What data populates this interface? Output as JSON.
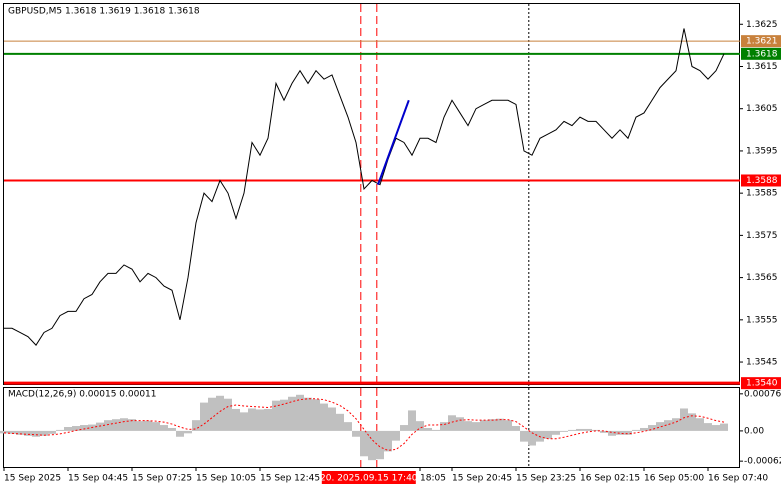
{
  "chart_data": [
    {
      "type": "line",
      "title": "GBPUSD,M5  1.3618 1.3619 1.3618 1.3618",
      "color": "#000000",
      "values": [
        1.3553,
        1.3553,
        1.3552,
        1.3551,
        1.3549,
        1.3552,
        1.3553,
        1.3556,
        1.3557,
        1.3557,
        1.356,
        1.3561,
        1.3564,
        1.3566,
        1.3566,
        1.3568,
        1.3567,
        1.3564,
        1.3566,
        1.3565,
        1.3563,
        1.3562,
        1.3555,
        1.3565,
        1.3578,
        1.3585,
        1.3583,
        1.3588,
        1.3585,
        1.3579,
        1.3585,
        1.3597,
        1.3594,
        1.3598,
        1.3611,
        1.3607,
        1.3611,
        1.3614,
        1.3611,
        1.3614,
        1.3612,
        1.3613,
        1.3608,
        1.3603,
        1.3597,
        1.3586,
        1.3588,
        1.3587,
        1.3593,
        1.3598,
        1.3597,
        1.3594,
        1.3598,
        1.3598,
        1.3597,
        1.3603,
        1.3607,
        1.3604,
        1.3601,
        1.3605,
        1.3606,
        1.3607,
        1.3607,
        1.3607,
        1.3606,
        1.3595,
        1.3594,
        1.3598,
        1.3599,
        1.36,
        1.3602,
        1.3601,
        1.3603,
        1.3602,
        1.3602,
        1.36,
        1.3598,
        1.36,
        1.3598,
        1.3603,
        1.3604,
        1.3607,
        1.361,
        1.3612,
        1.3614,
        1.3624,
        1.3615,
        1.3614,
        1.3612,
        1.3614,
        1.3618
      ],
      "xlim": [
        0,
        92
      ],
      "xticks": [
        {
          "value": 0,
          "label": "15 Sep 2025"
        },
        {
          "value": 8,
          "label": "15 Sep 04:45"
        },
        {
          "value": 16,
          "label": "15 Sep 07:25"
        },
        {
          "value": 24,
          "label": "15 Sep 10:05"
        },
        {
          "value": 32,
          "label": "15 Sep 12:45"
        },
        {
          "value": 52,
          "label": "18:05"
        },
        {
          "value": 56,
          "label": "15 Sep 20:45"
        },
        {
          "value": 64,
          "label": "15 Sep 23:25"
        },
        {
          "value": 72,
          "label": "16 Sep 02:15"
        },
        {
          "value": 80,
          "label": "16 Sep 05:00"
        },
        {
          "value": 88,
          "label": "16 Sep 07:40"
        }
      ],
      "highlight": {
        "value": 45.6,
        "label": "20. 2025.09.15 17:40",
        "color": "#ff0000"
      },
      "ylim": [
        1.35398,
        1.36298
      ],
      "yticks": [
        1.3625,
        1.3615,
        1.3605,
        1.3595,
        1.3585,
        1.3575,
        1.3565,
        1.3555,
        1.3545
      ],
      "levels": [
        {
          "value": 1.3621,
          "color": "#c8813c"
        },
        {
          "value": 1.3618,
          "color": "#008000"
        },
        {
          "value": 1.3588,
          "color": "#ff0000"
        },
        {
          "value": 1.354,
          "label": "1.3540",
          "color": "#ff0000"
        }
      ],
      "trend": {
        "x": [
          46.75,
          50.6
        ],
        "values": [
          1.3587,
          1.3607
        ],
        "color": "#0000cc"
      },
      "vlines": [
        {
          "value": 44.6,
          "color": "#ff0000",
          "style": "dash"
        },
        {
          "value": 46.6,
          "color": "#ff0000",
          "style": "dash"
        },
        {
          "value": 65.6,
          "color": "#000000",
          "style": "dot"
        }
      ]
    },
    {
      "type": "macd",
      "title": "MACD(12,26,9) 0.00015 0.00011",
      "histogram": {
        "color": "#c0c0c0",
        "values": [
          -5e-05,
          -6e-05,
          -8e-05,
          -0.0001,
          -0.00012,
          -0.0001,
          -6e-05,
          2e-05,
          8e-05,
          0.0001,
          0.00012,
          0.00013,
          0.00017,
          0.00022,
          0.00024,
          0.00026,
          0.00024,
          0.0002,
          0.00021,
          0.00018,
          0.00012,
          6e-05,
          -0.00012,
          -5e-05,
          0.00022,
          0.00058,
          0.00068,
          0.00072,
          0.00066,
          0.00045,
          0.00038,
          0.00046,
          0.00044,
          0.00045,
          0.00062,
          0.00064,
          0.0007,
          0.00074,
          0.00068,
          0.00065,
          0.00056,
          0.00048,
          0.00035,
          0.00018,
          -0.00012,
          -0.00052,
          -0.0006,
          -0.00058,
          -0.00042,
          -0.0002,
          0.00012,
          0.00042,
          0.0002,
          6e-05,
          2e-05,
          0.00018,
          0.00032,
          0.00028,
          0.0002,
          0.00018,
          0.00022,
          0.00024,
          0.00025,
          0.00022,
          0.0001,
          -0.00022,
          -0.0003,
          -0.00022,
          -0.00016,
          -8e-05,
          -2e-05,
          2e-05,
          4e-05,
          4e-05,
          2e-05,
          -4e-05,
          -0.0001,
          -8e-05,
          -8e-05,
          2e-05,
          6e-05,
          0.00012,
          0.00018,
          0.00022,
          0.00026,
          0.00046,
          0.00036,
          0.00026,
          0.00016,
          0.00012,
          0.00015
        ]
      },
      "signal": {
        "color": "#ff0000",
        "values": [
          -4e-05,
          -5e-05,
          -6e-05,
          -7e-05,
          -8e-05,
          -9e-05,
          -8e-05,
          -6e-05,
          -3e-05,
          1e-05,
          4e-05,
          7e-05,
          0.0001,
          0.00013,
          0.00016,
          0.00019,
          0.00021,
          0.00021,
          0.00021,
          0.0002,
          0.00018,
          0.00014,
          8e-05,
          3e-05,
          4e-05,
          0.00014,
          0.00027,
          0.0004,
          0.0005,
          0.00053,
          0.00051,
          0.0005,
          0.00049,
          0.00048,
          0.00051,
          0.00055,
          0.0006,
          0.00064,
          0.00066,
          0.00066,
          0.00064,
          0.00059,
          0.00052,
          0.00041,
          0.00025,
          3e-05,
          -0.00018,
          -0.00033,
          -0.0004,
          -0.00038,
          -0.00026,
          -7e-05,
          6e-05,
          0.00012,
          0.00012,
          0.00013,
          0.00018,
          0.00022,
          0.00023,
          0.00022,
          0.00022,
          0.00022,
          0.00023,
          0.00023,
          0.00019,
          8e-05,
          -4e-05,
          -0.00012,
          -0.00016,
          -0.00016,
          -0.00013,
          -9e-05,
          -5e-05,
          -2e-05,
          0,
          0,
          -3e-05,
          -5e-05,
          -6e-05,
          -4e-05,
          -1e-05,
          3e-05,
          8e-05,
          0.00013,
          0.00018,
          0.00027,
          0.00031,
          0.0003,
          0.00026,
          0.00021,
          0.00018
        ]
      },
      "ylim": [
        -0.00074,
        0.0009
      ],
      "yticks": [
        0.00076,
        {
          "value": 0,
          "label": "0.00"
        },
        -0.00062
      ]
    }
  ]
}
